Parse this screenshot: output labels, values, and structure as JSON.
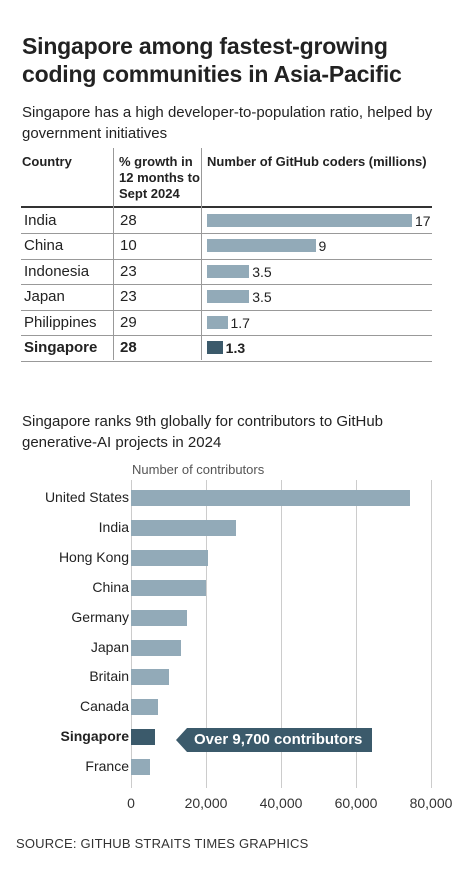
{
  "title": "Singapore among fastest-growing coding communities in Asia-Pacific",
  "table": {
    "subtitle": "Singapore has a high developer-to-population ratio, helped by government initiatives",
    "headers": {
      "country": "Country",
      "growth": "% growth in 12 months to Sept 2024",
      "coders": "Number of GitHub coders (millions)"
    },
    "rows": [
      {
        "country": "India",
        "growth": "28",
        "coders": 17,
        "coders_label": "17",
        "highlight": false
      },
      {
        "country": "China",
        "growth": "10",
        "coders": 9,
        "coders_label": "9",
        "highlight": false
      },
      {
        "country": "Indonesia",
        "growth": "23",
        "coders": 3.5,
        "coders_label": "3.5",
        "highlight": false
      },
      {
        "country": "Japan",
        "growth": "23",
        "coders": 3.5,
        "coders_label": "3.5",
        "highlight": false
      },
      {
        "country": "Philippines",
        "growth": "29",
        "coders": 1.7,
        "coders_label": "1.7",
        "highlight": false
      },
      {
        "country": "Singapore",
        "growth": "28",
        "coders": 1.3,
        "coders_label": "1.3",
        "highlight": true
      }
    ]
  },
  "chart_data": [
    {
      "type": "table",
      "columns": [
        "Country",
        "% growth in 12 months to Sept 2024",
        "Number of GitHub coders (millions)"
      ],
      "rows": [
        [
          "India",
          28,
          17
        ],
        [
          "China",
          10,
          9
        ],
        [
          "Indonesia",
          23,
          3.5
        ],
        [
          "Japan",
          23,
          3.5
        ],
        [
          "Philippines",
          29,
          1.7
        ],
        [
          "Singapore",
          28,
          1.3
        ]
      ]
    },
    {
      "type": "bar",
      "orientation": "horizontal",
      "title": "Singapore ranks 9th globally for contributors to GitHub generative-AI projects in 2024",
      "xlabel": "Number of contributors",
      "categories": [
        "United States",
        "India",
        "Hong Kong",
        "China",
        "Germany",
        "Japan",
        "Britain",
        "Canada",
        "Singapore",
        "France"
      ],
      "values": [
        74500,
        28000,
        20500,
        20000,
        15000,
        13200,
        10000,
        7200,
        6500,
        5000
      ],
      "highlight": "Singapore",
      "annotation": "Over 9,700 contributors",
      "xlim": [
        0,
        80000
      ],
      "xticks": [
        "0",
        "20,000",
        "40,000",
        "60,000",
        "80,000"
      ],
      "grid": true
    }
  ],
  "source": "SOURCE: GITHUB   STRAITS TIMES GRAPHICS",
  "colors": {
    "bar": "#92aab8",
    "highlight": "#3b5a6b"
  }
}
